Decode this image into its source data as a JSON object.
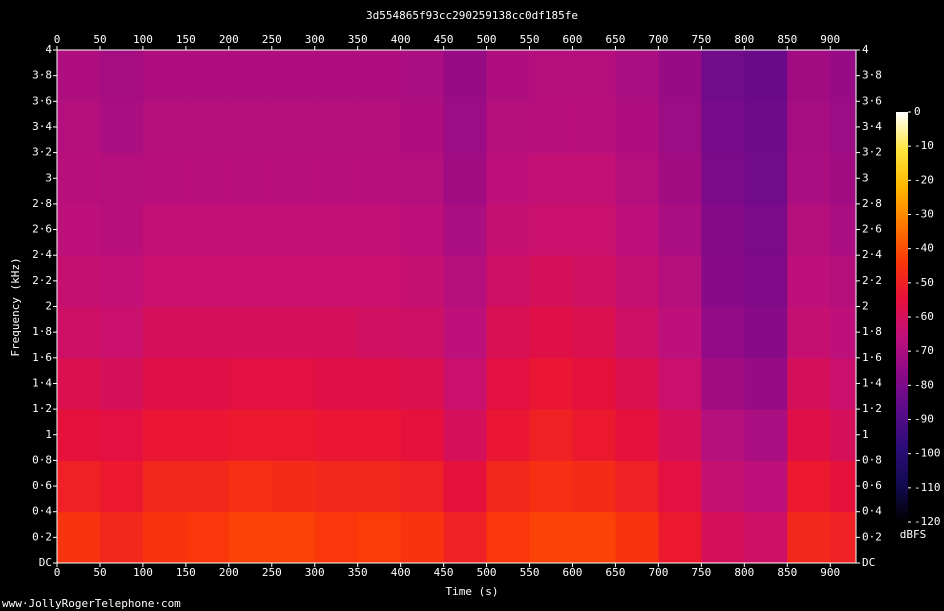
{
  "chart_data": {
    "type": "heatmap",
    "title": "3d554865f93cc290259138cc0df185fe",
    "xlabel": "Time (s)",
    "ylabel": "Frequency (kHz)",
    "xlim": [
      0,
      930
    ],
    "ylim": [
      0,
      4
    ],
    "xticks": [
      0,
      50,
      100,
      150,
      200,
      250,
      300,
      350,
      400,
      450,
      500,
      550,
      600,
      650,
      700,
      750,
      800,
      850,
      900
    ],
    "yticks": [
      {
        "value": 0,
        "label": "DC"
      },
      {
        "value": 0.2,
        "label": "0·2"
      },
      {
        "value": 0.4,
        "label": "0·4"
      },
      {
        "value": 0.6,
        "label": "0·6"
      },
      {
        "value": 0.8,
        "label": "0·8"
      },
      1,
      {
        "value": 1.2,
        "label": "1·2"
      },
      {
        "value": 1.4,
        "label": "1·4"
      },
      {
        "value": 1.6,
        "label": "1·6"
      },
      {
        "value": 1.8,
        "label": "1·8"
      },
      2,
      {
        "value": 2.2,
        "label": "2·2"
      },
      {
        "value": 2.4,
        "label": "2·4"
      },
      {
        "value": 2.6,
        "label": "2·6"
      },
      {
        "value": 2.8,
        "label": "2·8"
      },
      3,
      {
        "value": 3.2,
        "label": "3·2"
      },
      {
        "value": 3.4,
        "label": "3·4"
      },
      {
        "value": 3.6,
        "label": "3·6"
      },
      {
        "value": 3.8,
        "label": "3·8"
      },
      4
    ],
    "x_bins": [
      0,
      50,
      100,
      150,
      200,
      250,
      300,
      350,
      400,
      450,
      500,
      550,
      600,
      650,
      700,
      750,
      800,
      850,
      900,
      930
    ],
    "y_bins": [
      0,
      0.4,
      0.8,
      1.2,
      1.6,
      2,
      2.4,
      2.8,
      3.2,
      3.6,
      4
    ],
    "values": [
      [
        -45,
        -48,
        -45,
        -44,
        -42,
        -42,
        -44,
        -43,
        -45,
        -50,
        -44,
        -42,
        -42,
        -45,
        -52,
        -60,
        -62,
        -48,
        -50
      ],
      [
        -50,
        -52,
        -48,
        -48,
        -46,
        -47,
        -48,
        -48,
        -50,
        -55,
        -48,
        -46,
        -47,
        -50,
        -56,
        -64,
        -66,
        -52,
        -55
      ],
      [
        -55,
        -56,
        -53,
        -53,
        -52,
        -52,
        -53,
        -53,
        -55,
        -60,
        -53,
        -50,
        -52,
        -55,
        -60,
        -68,
        -70,
        -57,
        -60
      ],
      [
        -58,
        -60,
        -57,
        -57,
        -56,
        -56,
        -57,
        -57,
        -58,
        -63,
        -56,
        -53,
        -55,
        -58,
        -63,
        -72,
        -74,
        -60,
        -63
      ],
      [
        -62,
        -63,
        -60,
        -60,
        -60,
        -60,
        -60,
        -61,
        -62,
        -66,
        -59,
        -57,
        -58,
        -62,
        -66,
        -75,
        -77,
        -64,
        -66
      ],
      [
        -64,
        -65,
        -63,
        -63,
        -63,
        -63,
        -63,
        -63,
        -64,
        -68,
        -62,
        -60,
        -61,
        -64,
        -68,
        -77,
        -79,
        -66,
        -68
      ],
      [
        -66,
        -67,
        -65,
        -65,
        -65,
        -65,
        -65,
        -65,
        -66,
        -70,
        -64,
        -63,
        -63,
        -66,
        -70,
        -78,
        -80,
        -68,
        -70
      ],
      [
        -67,
        -68,
        -67,
        -67,
        -67,
        -67,
        -67,
        -67,
        -68,
        -72,
        -66,
        -65,
        -65,
        -68,
        -72,
        -80,
        -82,
        -70,
        -72
      ],
      [
        -68,
        -70,
        -68,
        -68,
        -68,
        -68,
        -68,
        -68,
        -69,
        -73,
        -68,
        -67,
        -67,
        -69,
        -73,
        -81,
        -83,
        -71,
        -73
      ],
      [
        -69,
        -71,
        -69,
        -69,
        -69,
        -69,
        -69,
        -69,
        -70,
        -74,
        -69,
        -68,
        -68,
        -70,
        -74,
        -82,
        -84,
        -72,
        -74
      ]
    ],
    "colormap": [
      "#000000",
      "#120a50",
      "#2c0c78",
      "#5a0c8a",
      "#8c0a88",
      "#c0107a",
      "#e8103a",
      "#fa3808",
      "#ff7a00",
      "#ffb800",
      "#ffe640",
      "#ffffff"
    ],
    "colorbar": {
      "label": "dBFS",
      "lim": [
        -120,
        0
      ],
      "ticks": [
        0,
        -10,
        -20,
        -30,
        -40,
        -50,
        -60,
        -70,
        -80,
        -90,
        -100,
        -110,
        -120
      ]
    }
  },
  "credit": "www·JollyRogerTelephone·com"
}
